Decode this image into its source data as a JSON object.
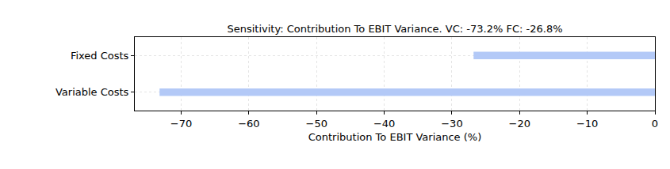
{
  "chart_data": {
    "type": "bar",
    "orientation": "horizontal",
    "title": "Sensitivity: Contribution To EBIT Variance. VC: -73.2% FC: -26.8%",
    "x_label": "Contribution To EBIT Variance (%)",
    "categories": [
      "Variable Costs",
      "Fixed Costs"
    ],
    "values": [
      -73.2,
      -26.8
    ],
    "color": "#b3c9f7",
    "xlim": [
      -76.86,
      0
    ],
    "xticks": [
      -70,
      -60,
      -50,
      -40,
      -30,
      -20,
      -10,
      0
    ],
    "grid": true
  }
}
